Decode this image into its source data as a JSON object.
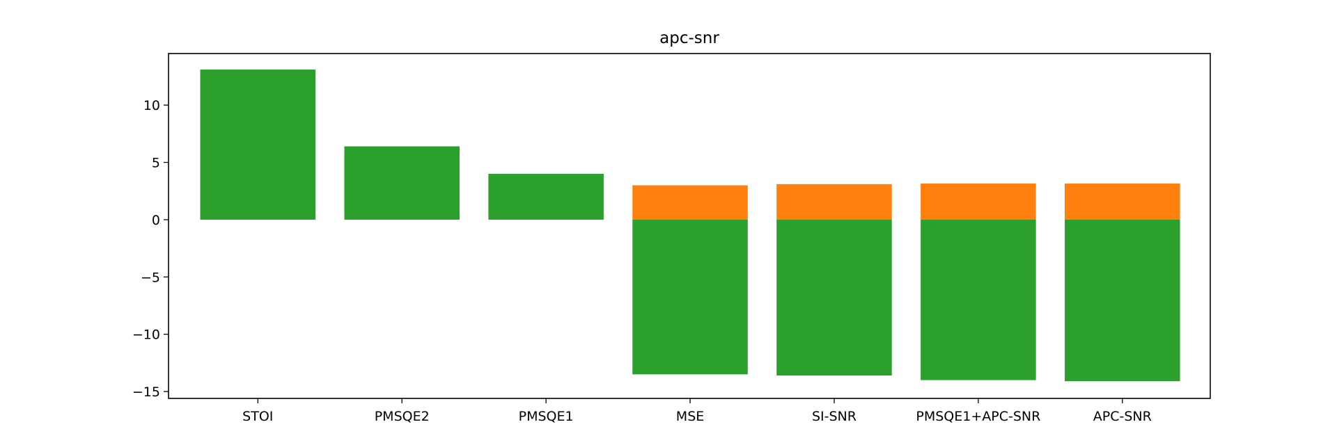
{
  "chart_data": {
    "type": "bar",
    "title": "apc-snr",
    "xlabel": "",
    "ylabel": "",
    "categories": [
      "STOI",
      "PMSQE2",
      "PMSQE1",
      "MSE",
      "SI-SNR",
      "PMSQE1+APC-SNR",
      "APC-SNR"
    ],
    "series": [
      {
        "values": [
          0,
          0,
          0,
          3.0,
          3.1,
          3.15,
          3.15
        ],
        "color": "#ff7f0e"
      },
      {
        "values": [
          13.1,
          6.4,
          4.0,
          -13.5,
          -13.6,
          -14.0,
          -14.1
        ],
        "color": "#2ca02c"
      }
    ],
    "ylim": [
      -15.6,
      14.5
    ],
    "yticks": [
      10,
      5,
      0,
      -5,
      -10,
      -15
    ],
    "ytick_labels": [
      "10",
      "5",
      "0",
      "−5",
      "−10",
      "−15"
    ],
    "grid": false,
    "legend": "none"
  }
}
